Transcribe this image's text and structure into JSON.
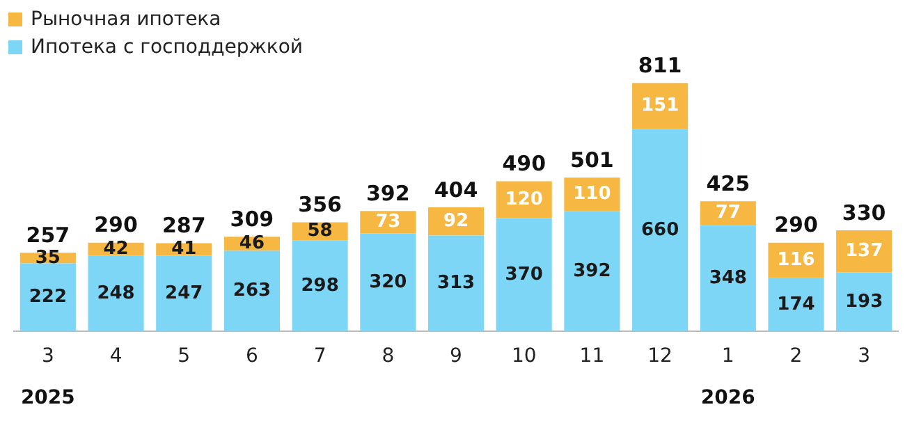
{
  "chart_data": {
    "type": "bar",
    "stacked": true,
    "data_labels": true,
    "legend": "top left",
    "categories": [
      "3",
      "4",
      "5",
      "6",
      "7",
      "8",
      "9",
      "10",
      "11",
      "12",
      "1",
      "2",
      "3"
    ],
    "series": [
      {
        "name": "Ипотека с господдержкой",
        "color": "#7dd6f6",
        "values": [
          222,
          248,
          247,
          263,
          298,
          320,
          313,
          370,
          392,
          660,
          348,
          174,
          193
        ]
      },
      {
        "name": "Рыночная ипотека",
        "color": "#f6b843",
        "values": [
          35,
          42,
          41,
          46,
          58,
          73,
          92,
          120,
          110,
          151,
          77,
          116,
          137
        ]
      }
    ],
    "totals": [
      "257",
      "290",
      "287",
      "309",
      "356",
      "392",
      "404",
      "490",
      "501",
      "811",
      "425",
      "290",
      "330"
    ],
    "annotations": [
      "2025",
      "2026"
    ]
  }
}
